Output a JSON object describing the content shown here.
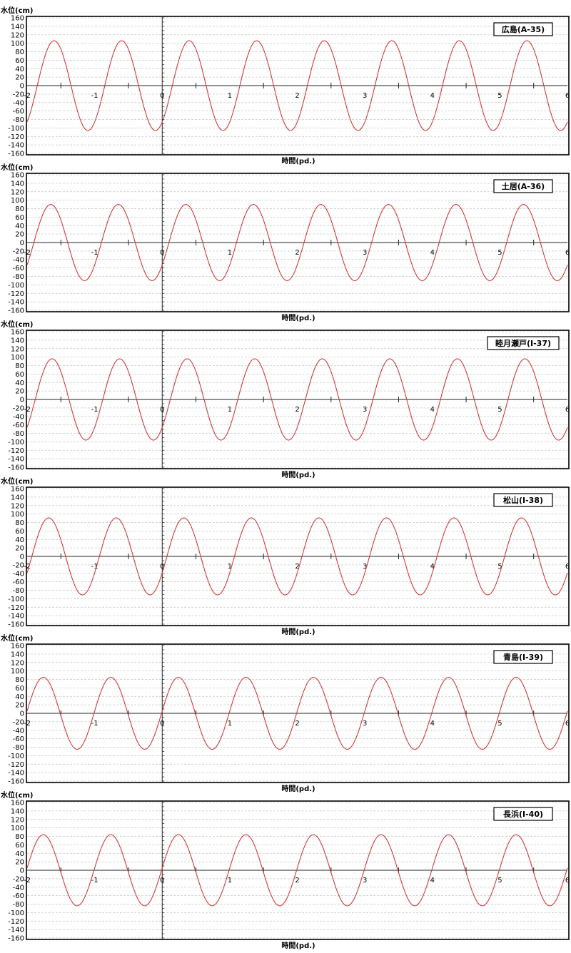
{
  "chart_data": [
    {
      "type": "line",
      "station_label": "広島(A-35)",
      "ylabel": "水位(cm)",
      "xlabel": "時間(pd.)",
      "xlim": [
        -2,
        6
      ],
      "ylim": [
        -160,
        160
      ],
      "yticks": [
        160,
        140,
        120,
        100,
        80,
        60,
        40,
        20,
        0,
        -20,
        -40,
        -60,
        -80,
        -100,
        -120,
        -140,
        -160
      ],
      "xticks": [
        -2,
        -1,
        0,
        1,
        2,
        3,
        4,
        5,
        6
      ],
      "grid": true,
      "series": [
        {
          "amplitude": 106,
          "period": 1.0,
          "phase_peak_x": -1.6,
          "color": "#d23a3a"
        }
      ]
    },
    {
      "type": "line",
      "station_label": "土居(A-36)",
      "ylabel": "水位(cm)",
      "xlabel": "時間(pd.)",
      "xlim": [
        -2,
        6
      ],
      "ylim": [
        -160,
        160
      ],
      "yticks": [
        160,
        140,
        120,
        100,
        80,
        60,
        40,
        20,
        0,
        -20,
        -40,
        -60,
        -80,
        -100,
        -120,
        -140,
        -160
      ],
      "xticks": [
        -2,
        -1,
        0,
        1,
        2,
        3,
        4,
        5,
        6
      ],
      "grid": true,
      "series": [
        {
          "amplitude": 90,
          "period": 1.0,
          "phase_peak_x": -1.65,
          "color": "#d23a3a"
        }
      ]
    },
    {
      "type": "line",
      "station_label": "睦月瀬戸(I-37)",
      "ylabel": "水位(cm)",
      "xlabel": "時間(pd.)",
      "xlim": [
        -2,
        6
      ],
      "ylim": [
        -160,
        160
      ],
      "yticks": [
        160,
        140,
        120,
        100,
        80,
        60,
        40,
        20,
        0,
        -20,
        -40,
        -60,
        -80,
        -100,
        -120,
        -140,
        -160
      ],
      "xticks": [
        -2,
        -1,
        0,
        1,
        2,
        3,
        4,
        5,
        6
      ],
      "grid": true,
      "series": [
        {
          "amplitude": 96,
          "period": 1.0,
          "phase_peak_x": -1.63,
          "color": "#d23a3a"
        }
      ]
    },
    {
      "type": "line",
      "station_label": "松山(I-38)",
      "ylabel": "水位(cm)",
      "xlabel": "時間(pd.)",
      "xlim": [
        -2,
        6
      ],
      "ylim": [
        -160,
        160
      ],
      "yticks": [
        160,
        140,
        120,
        100,
        80,
        60,
        40,
        20,
        0,
        -20,
        -40,
        -60,
        -80,
        -100,
        -120,
        -140,
        -160
      ],
      "xticks": [
        -2,
        -1,
        0,
        1,
        2,
        3,
        4,
        5,
        6
      ],
      "grid": true,
      "series": [
        {
          "amplitude": 91,
          "period": 1.0,
          "phase_peak_x": -1.68,
          "color": "#d23a3a"
        }
      ]
    },
    {
      "type": "line",
      "station_label": "青島(I-39)",
      "ylabel": "水位(cm)",
      "xlabel": "時間(pd.)",
      "xlim": [
        -2,
        6
      ],
      "ylim": [
        -160,
        160
      ],
      "yticks": [
        160,
        140,
        120,
        100,
        80,
        60,
        40,
        20,
        0,
        -20,
        -40,
        -60,
        -80,
        -100,
        -120,
        -140,
        -160
      ],
      "xticks": [
        -2,
        -1,
        0,
        1,
        2,
        3,
        4,
        5,
        6
      ],
      "grid": true,
      "series": [
        {
          "amplitude": 85,
          "period": 1.0,
          "phase_peak_x": -1.76,
          "color": "#d23a3a"
        }
      ]
    },
    {
      "type": "line",
      "station_label": "長浜(I-40)",
      "ylabel": "水位(cm)",
      "xlabel": "時間(pd.)",
      "xlim": [
        -2,
        6
      ],
      "ylim": [
        -160,
        160
      ],
      "yticks": [
        160,
        140,
        120,
        100,
        80,
        60,
        40,
        20,
        0,
        -20,
        -40,
        -60,
        -80,
        -100,
        -120,
        -140,
        -160
      ],
      "xticks": [
        -2,
        -1,
        0,
        1,
        2,
        3,
        4,
        5,
        6
      ],
      "grid": true,
      "series": [
        {
          "amplitude": 84,
          "period": 1.0,
          "phase_peak_x": -1.76,
          "color": "#d23a3a"
        }
      ]
    }
  ]
}
